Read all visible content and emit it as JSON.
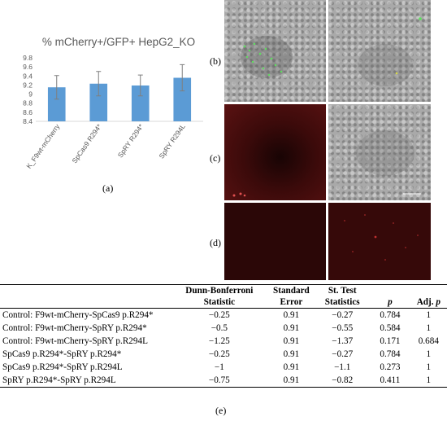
{
  "chart_data": {
    "type": "bar",
    "title": "% mCherry+/GFP+ HepG2_KO",
    "categories": [
      "K_F9wt-mCherry",
      "SpCas9 R294*",
      "SpRY R294*",
      "SpRY R294L"
    ],
    "values": [
      9.15,
      9.23,
      9.19,
      9.36
    ],
    "error": [
      0.26,
      0.27,
      0.23,
      0.29
    ],
    "ylim": [
      8.4,
      9.8
    ],
    "yticks": [
      "8.4",
      "8.6",
      "8.8",
      "9",
      "9.2",
      "9.4",
      "9.6",
      "9.8"
    ],
    "grid": false,
    "bar_color": "#5b9bd5"
  },
  "labels": {
    "a": "(a)",
    "b": "(b)",
    "c": "(c)",
    "d": "(d)",
    "e": "(e)"
  },
  "table": {
    "headers": {
      "dunn": "Dunn-Bonferroni Statistic",
      "se": "Standard Error",
      "st": "St. Test Statistics",
      "p": "p",
      "adj": "Adj. p"
    },
    "rows": [
      {
        "comparison": "Control: F9wt-mCherry-SpCas9 p.R294*",
        "dunn": "−0.25",
        "se": "0.91",
        "st": "−0.27",
        "p": "0.784",
        "adj": "1"
      },
      {
        "comparison": "Control: F9wt-mCherry-SpRY p.R294*",
        "dunn": "−0.5",
        "se": "0.91",
        "st": "−0.55",
        "p": "0.584",
        "adj": "1"
      },
      {
        "comparison": "Control: F9wt-mCherry-SpRY p.R294L",
        "dunn": "−1.25",
        "se": "0.91",
        "st": "−1.37",
        "p": "0.171",
        "adj": "0.684"
      },
      {
        "comparison": "SpCas9 p.R294*-SpRY p.R294*",
        "dunn": "−0.25",
        "se": "0.91",
        "st": "−0.27",
        "p": "0.784",
        "adj": "1"
      },
      {
        "comparison": "SpCas9 p.R294*-SpRY p.R294L",
        "dunn": "−1",
        "se": "0.91",
        "st": "−1.1",
        "p": "0.273",
        "adj": "1"
      },
      {
        "comparison": "SpRY p.R294*-SpRY p.R294L",
        "dunn": "−0.75",
        "se": "0.91",
        "st": "−0.82",
        "p": "0.411",
        "adj": "1"
      }
    ]
  }
}
